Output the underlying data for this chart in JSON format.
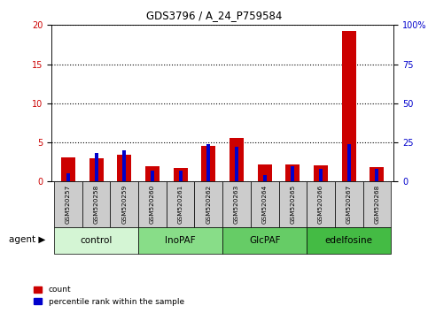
{
  "title": "GDS3796 / A_24_P759584",
  "samples": [
    "GSM520257",
    "GSM520258",
    "GSM520259",
    "GSM520260",
    "GSM520261",
    "GSM520262",
    "GSM520263",
    "GSM520264",
    "GSM520265",
    "GSM520266",
    "GSM520267",
    "GSM520268"
  ],
  "count_values": [
    3.1,
    3.0,
    3.4,
    2.0,
    1.7,
    4.5,
    5.6,
    2.2,
    2.2,
    2.1,
    19.2,
    1.9
  ],
  "percentile_values": [
    5,
    18,
    20,
    7,
    7,
    24,
    22,
    4,
    10,
    8,
    24,
    8
  ],
  "groups": [
    {
      "label": "control",
      "start": 0,
      "end": 3,
      "color": "#d4f5d4"
    },
    {
      "label": "InoPAF",
      "start": 3,
      "end": 6,
      "color": "#88dd88"
    },
    {
      "label": "GlcPAF",
      "start": 6,
      "end": 9,
      "color": "#66cc66"
    },
    {
      "label": "edelfosine",
      "start": 9,
      "end": 12,
      "color": "#44bb44"
    }
  ],
  "ylim_left": [
    0,
    20
  ],
  "ylim_right": [
    0,
    100
  ],
  "yticks_left": [
    0,
    5,
    10,
    15,
    20
  ],
  "yticks_right": [
    0,
    25,
    50,
    75,
    100
  ],
  "ytick_labels_right": [
    "0",
    "25",
    "50",
    "75",
    "100%"
  ],
  "red_color": "#cc0000",
  "blue_color": "#0000cc",
  "bg_color": "#ffffff",
  "legend_red": "count",
  "legend_blue": "percentile rank within the sample",
  "agent_label": "agent",
  "red_bar_width": 0.5,
  "blue_bar_width": 0.12
}
